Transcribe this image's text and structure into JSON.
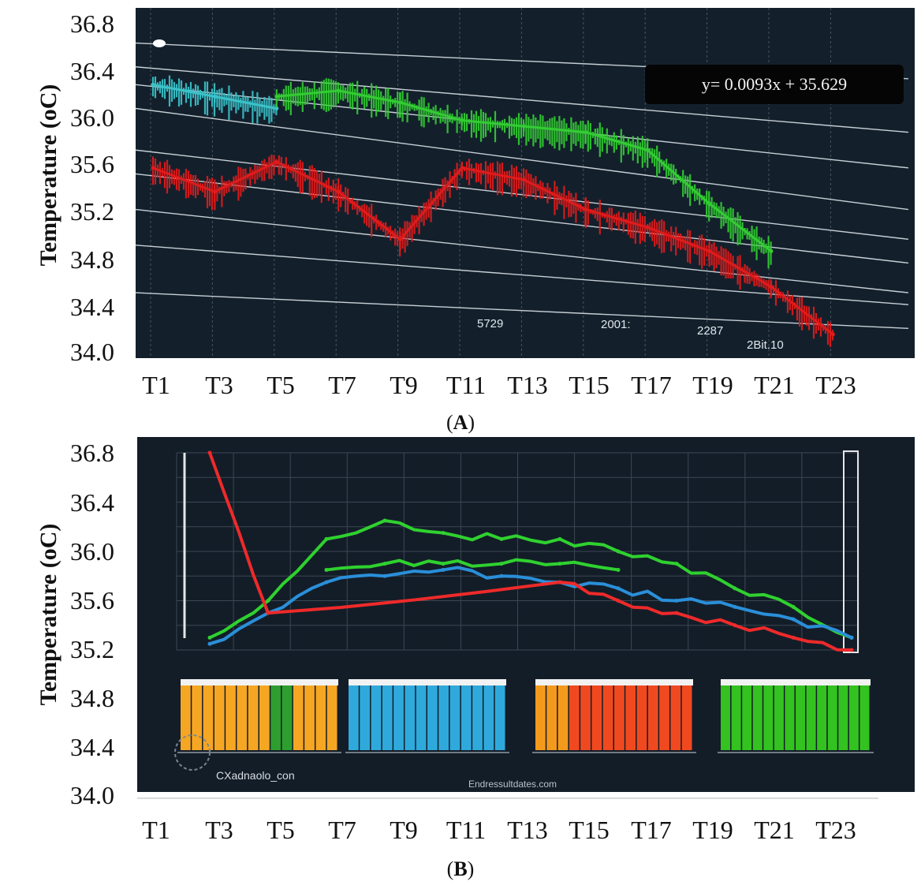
{
  "chart_data": [
    {
      "panel": "A",
      "type": "line",
      "caption": "A",
      "ylabel": "Temperature (oC)",
      "ylim": [
        34.0,
        36.8
      ],
      "yticks": [
        "36.8",
        "36.4",
        "36.0",
        "35.6",
        "35.2",
        "34.8",
        "34.4",
        "34.0"
      ],
      "categories": [
        "T1",
        "T3",
        "T5",
        "T7",
        "T9",
        "T11",
        "T13",
        "T15",
        "T17",
        "T19",
        "T21",
        "T23"
      ],
      "trendline_label": "y= 0.0093x + 35.629",
      "background": "#13202c",
      "series": [
        {
          "color": "#3ac2c9",
          "values": [
            36.3,
            36.2,
            36.1,
            null,
            null,
            null,
            null,
            null,
            null,
            null,
            null,
            null
          ]
        },
        {
          "color": "#33cc33",
          "values": [
            null,
            null,
            36.2,
            36.25,
            36.15,
            36.0,
            35.95,
            35.9,
            35.75,
            35.3,
            34.9,
            null
          ]
        },
        {
          "color": "#e01b1b",
          "values": [
            35.6,
            35.4,
            35.65,
            35.4,
            35.0,
            35.6,
            35.5,
            35.25,
            35.1,
            34.9,
            34.6,
            34.2
          ]
        }
      ],
      "annotations": [
        "5729",
        "2001:",
        "2287",
        "2Bit.10"
      ]
    },
    {
      "panel": "B",
      "type": "line",
      "caption": "B",
      "ylabel": "Temperature (oC)",
      "ylim": [
        34.0,
        36.8
      ],
      "yticks": [
        "36.8",
        "36.4",
        "36.0",
        "35.6",
        "35.2",
        "34.8",
        "34.4",
        "34.0"
      ],
      "categories": [
        "T1",
        "T3",
        "T5",
        "T7",
        "T9",
        "T11",
        "T13",
        "T15",
        "T17",
        "T19",
        "T21",
        "T23"
      ],
      "background": "#131d28",
      "series": [
        {
          "color": "#2fd12f",
          "values": [
            35.3,
            35.6,
            36.1,
            36.25,
            36.15,
            36.1,
            36.1,
            36.0,
            35.9,
            35.7,
            35.55,
            35.3
          ]
        },
        {
          "color": "#2fd12f",
          "values": [
            null,
            null,
            35.85,
            35.9,
            35.9,
            35.9,
            35.9,
            35.85,
            null,
            null,
            null,
            null
          ]
        },
        {
          "color": "#2a8fd9",
          "values": [
            35.25,
            35.5,
            35.75,
            35.8,
            35.85,
            35.8,
            35.75,
            35.7,
            35.6,
            35.55,
            35.45,
            35.3
          ]
        },
        {
          "color": "#ee2a2a",
          "values": [
            36.8,
            35.5,
            null,
            null,
            null,
            null,
            35.75,
            35.6,
            35.5,
            35.4,
            35.3,
            35.2
          ]
        }
      ],
      "watermarks": [
        "CXadnaolo_con",
        "Endressultdates.com"
      ],
      "inset_colors": [
        "#f5a623",
        "#2fa9dc",
        "#f0491f",
        "#33c21f"
      ]
    }
  ]
}
